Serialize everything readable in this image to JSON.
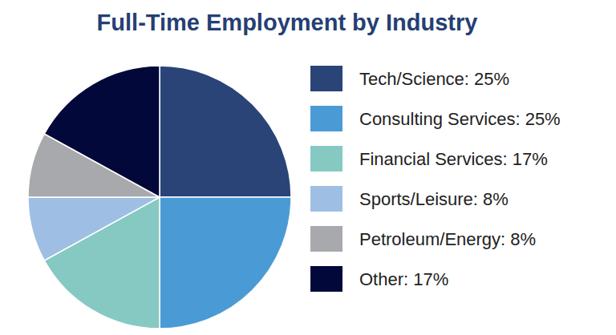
{
  "chart_data": {
    "type": "pie",
    "title": "Full-Time Employment by Industry",
    "categories": [
      "Tech/Science: 25%",
      "Consulting Services: 25%",
      "Financial Services: 17%",
      "Sports/Leisure: 8%",
      "Petroleum/Energy: 8%",
      "Other: 17%"
    ],
    "values": [
      25,
      25,
      17,
      8,
      8,
      17
    ],
    "colors": [
      "#2a4478",
      "#4a9bd5",
      "#86c9c2",
      "#9fbee4",
      "#a8a9ad",
      "#03083a"
    ],
    "legend": "right"
  }
}
